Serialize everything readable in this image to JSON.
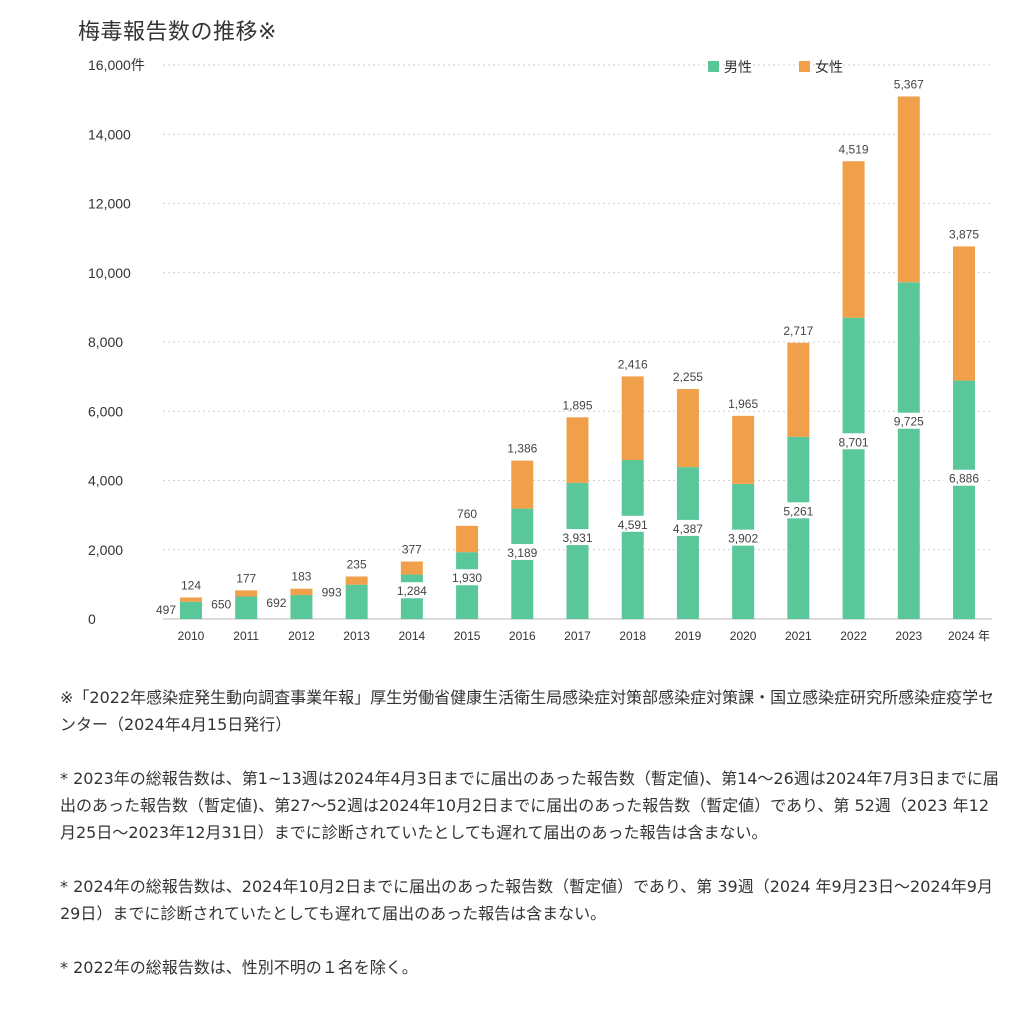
{
  "chart_data": {
    "type": "bar",
    "stacked": true,
    "title": "梅毒報告数の推移※",
    "categories": [
      "2010",
      "2011",
      "2012",
      "2013",
      "2014",
      "2015",
      "2016",
      "2017",
      "2018",
      "2019",
      "2020",
      "2021",
      "2022",
      "2023",
      "2024"
    ],
    "x_unit": "年",
    "y_unit": "件",
    "series": [
      {
        "name": "男性",
        "color": "#5ac79a",
        "values": [
          497,
          650,
          692,
          993,
          1284,
          1930,
          3189,
          3931,
          4591,
          4387,
          3902,
          5261,
          8701,
          9725,
          6886
        ]
      },
      {
        "name": "女性",
        "color": "#f0a04b",
        "values": [
          124,
          177,
          183,
          235,
          377,
          760,
          1386,
          1895,
          2416,
          2255,
          1965,
          2717,
          4519,
          5367,
          3875
        ]
      }
    ],
    "ylim": [
      0,
      16000
    ],
    "yticks": [
      0,
      2000,
      4000,
      6000,
      8000,
      10000,
      12000,
      14000,
      16000
    ],
    "ytick_labels": [
      "0",
      "2,000",
      "4,000",
      "6,000",
      "8,000",
      "10,000",
      "12,000",
      "14,000",
      "16,000"
    ],
    "grid": "horizontal dashed",
    "legend_position": "top-right"
  },
  "notes": {
    "source": "※「2022年感染症発生動向調査事業年報」厚生労働省健康生活衛生局感染症対策部感染症対策課・国立感染症研究所感染症疫学センター（2024年4月15日発行）",
    "note_2023": "* 2023年の総報告数は、第1~13週は2024年4月3日までに届出のあった報告数（暫定値)、第14〜26週は2024年7月3日までに届出のあった報告数（暫定値)、第27〜52週は2024年10月2日までに届出のあった報告数（暫定値）であり、第 52週（2023 年12月25日〜2023年12月31日）までに診断されていたとしても遅れて届出のあった報告は含まない。",
    "note_2024": "* 2024年の総報告数は、2024年10月2日までに届出のあった報告数（暫定値）であり、第 39週（2024 年9月23日〜2024年9月29日）までに診断されていたとしても遅れて届出のあった報告は含まない。",
    "note_2022": "* 2022年の総報告数は、性別不明の１名を除く。"
  }
}
